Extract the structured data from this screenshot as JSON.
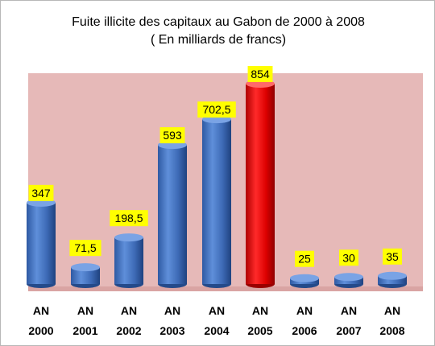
{
  "chart_data": {
    "type": "bar",
    "title": "Fuite illicite des capitaux au Gabon de 2000 à 2008",
    "subtitle": "( En milliards de francs)",
    "categories": [
      "AN 2000",
      "AN 2001",
      "AN 2002",
      "AN 2003",
      "AN 2004",
      "AN 2005",
      "AN 2006",
      "AN 2007",
      "AN 2008"
    ],
    "category_lines": [
      [
        "AN",
        "2000"
      ],
      [
        "AN",
        "2001"
      ],
      [
        "AN",
        "2002"
      ],
      [
        "AN",
        "2003"
      ],
      [
        "AN",
        "2004"
      ],
      [
        "AN",
        "2005"
      ],
      [
        "AN",
        "2006"
      ],
      [
        "AN",
        "2007"
      ],
      [
        "AN",
        "2008"
      ]
    ],
    "values": [
      347,
      71.5,
      198.5,
      593,
      702.5,
      854,
      25,
      30,
      35
    ],
    "value_labels": [
      "347",
      "71,5",
      "198,5",
      "593",
      "702,5",
      "854",
      "25",
      "30",
      "35"
    ],
    "bar_colors": [
      "#4A79C5",
      "#4A79C5",
      "#4A79C5",
      "#4A79C5",
      "#4A79C5",
      "#FF0000",
      "#4A79C5",
      "#4A79C5",
      "#4A79C5"
    ],
    "ylim": [
      0,
      854
    ],
    "grid": false,
    "legend": false
  },
  "colors": {
    "plot_background": "#E6B9B8",
    "label_background": "#FFFF00",
    "text": "#000000"
  }
}
